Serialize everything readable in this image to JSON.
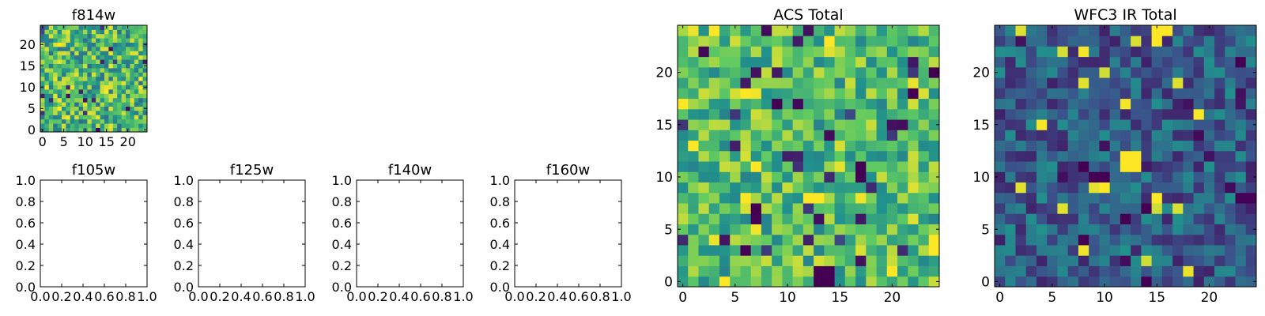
{
  "colormap": [
    "#440154",
    "#3b528b",
    "#21918c",
    "#5ec962",
    "#fde725"
  ],
  "chart_data": [
    {
      "id": "f814w",
      "type": "heatmap",
      "title": "f814w",
      "grid_size": [
        25,
        25
      ],
      "xticks": [
        "0",
        "5",
        "10",
        "15",
        "20"
      ],
      "yticks": [
        "0",
        "5",
        "10",
        "15",
        "20"
      ],
      "xlim": [
        -0.5,
        24.5
      ],
      "ylim": [
        -0.5,
        24.5
      ],
      "value_range": [
        0,
        1
      ],
      "hotspots": [
        {
          "x": 13,
          "y": 0,
          "v": 0.0
        }
      ],
      "seed": 11,
      "mean": 0.66,
      "spread": 0.3
    },
    {
      "id": "f105w",
      "type": "empty",
      "title": "f105w",
      "xticks": [
        "0.0",
        "0.2",
        "0.4",
        "0.6",
        "0.8",
        "1.0"
      ],
      "yticks": [
        "0.0",
        "0.2",
        "0.4",
        "0.6",
        "0.8",
        "1.0"
      ],
      "xlim": [
        0,
        1
      ],
      "ylim": [
        0,
        1
      ]
    },
    {
      "id": "f125w",
      "type": "empty",
      "title": "f125w",
      "xticks": [
        "0.0",
        "0.2",
        "0.4",
        "0.6",
        "0.8",
        "1.0"
      ],
      "yticks": [
        "0.0",
        "0.2",
        "0.4",
        "0.6",
        "0.8",
        "1.0"
      ],
      "xlim": [
        0,
        1
      ],
      "ylim": [
        0,
        1
      ]
    },
    {
      "id": "f140w",
      "type": "empty",
      "title": "f140w",
      "xticks": [
        "0.0",
        "0.2",
        "0.4",
        "0.6",
        "0.8",
        "1.0"
      ],
      "yticks": [
        "0.0",
        "0.2",
        "0.4",
        "0.6",
        "0.8",
        "1.0"
      ],
      "xlim": [
        0,
        1
      ],
      "ylim": [
        0,
        1
      ]
    },
    {
      "id": "f160w",
      "type": "empty",
      "title": "f160w",
      "xticks": [
        "0.0",
        "0.2",
        "0.4",
        "0.6",
        "0.8",
        "1.0"
      ],
      "yticks": [
        "0.0",
        "0.2",
        "0.4",
        "0.6",
        "0.8",
        "1.0"
      ],
      "xlim": [
        0,
        1
      ],
      "ylim": [
        0,
        1
      ]
    },
    {
      "id": "acs-total",
      "type": "heatmap",
      "title": "ACS Total",
      "grid_size": [
        25,
        25
      ],
      "xticks": [
        "0",
        "5",
        "10",
        "15",
        "20"
      ],
      "yticks": [
        "0",
        "5",
        "10",
        "15",
        "20"
      ],
      "xlim": [
        -0.5,
        24.5
      ],
      "ylim": [
        -0.5,
        24.5
      ],
      "value_range": [
        0,
        1
      ],
      "hotspots": [
        {
          "x": 13,
          "y": 0,
          "v": 0.0
        },
        {
          "x": 14,
          "y": 0,
          "v": 0.0
        },
        {
          "x": 13,
          "y": 1,
          "v": 0.0
        },
        {
          "x": 14,
          "y": 1,
          "v": 0.0
        },
        {
          "x": 17,
          "y": 10,
          "v": 0.0
        },
        {
          "x": 17,
          "y": 11,
          "v": 0.0
        },
        {
          "x": 7,
          "y": 6,
          "v": 0.0
        },
        {
          "x": 7,
          "y": 7,
          "v": 0.0
        },
        {
          "x": 6,
          "y": 3,
          "v": 0.0
        },
        {
          "x": 9,
          "y": 17,
          "v": 0.0
        },
        {
          "x": 22,
          "y": 18,
          "v": 0.0
        },
        {
          "x": 24,
          "y": 20,
          "v": 0.0
        },
        {
          "x": 11,
          "y": 12,
          "v": 0.1
        },
        {
          "x": 11,
          "y": 11,
          "v": 0.15
        },
        {
          "x": 12,
          "y": 8,
          "v": 1.0
        },
        {
          "x": 13,
          "y": 8,
          "v": 1.0
        },
        {
          "x": 6,
          "y": 8,
          "v": 1.0
        },
        {
          "x": 7,
          "y": 11,
          "v": 1.0
        },
        {
          "x": 1,
          "y": 13,
          "v": 1.0
        },
        {
          "x": 0,
          "y": 17,
          "v": 1.0
        },
        {
          "x": 3,
          "y": 24,
          "v": 1.0
        },
        {
          "x": 14,
          "y": 23,
          "v": 1.0
        },
        {
          "x": 6,
          "y": 18,
          "v": 1.0
        },
        {
          "x": 24,
          "y": 4,
          "v": 1.0
        },
        {
          "x": 24,
          "y": 3,
          "v": 1.0
        },
        {
          "x": 20,
          "y": 1,
          "v": 1.0
        }
      ],
      "seed": 7,
      "mean": 0.68,
      "spread": 0.24
    },
    {
      "id": "wfc3-ir-total",
      "type": "heatmap",
      "title": "WFC3 IR Total",
      "grid_size": [
        25,
        25
      ],
      "xticks": [
        "0",
        "5",
        "10",
        "15",
        "20"
      ],
      "yticks": [
        "0",
        "5",
        "10",
        "15",
        "20"
      ],
      "xlim": [
        -0.5,
        24.5
      ],
      "ylim": [
        -0.5,
        24.5
      ],
      "value_range": [
        0,
        1
      ],
      "hotspots": [
        {
          "x": 12,
          "y": 11,
          "v": 1.0
        },
        {
          "x": 13,
          "y": 11,
          "v": 1.0
        },
        {
          "x": 12,
          "y": 12,
          "v": 1.0
        },
        {
          "x": 13,
          "y": 12,
          "v": 1.0
        },
        {
          "x": 15,
          "y": 24,
          "v": 1.0
        },
        {
          "x": 16,
          "y": 24,
          "v": 1.0
        },
        {
          "x": 15,
          "y": 23,
          "v": 1.0
        },
        {
          "x": 2,
          "y": 24,
          "v": 0.95
        },
        {
          "x": 9,
          "y": 10,
          "v": 0.0
        },
        {
          "x": 10,
          "y": 10,
          "v": 0.0
        },
        {
          "x": 8,
          "y": 11,
          "v": 0.0
        },
        {
          "x": 8,
          "y": 4,
          "v": 0.0
        },
        {
          "x": 12,
          "y": 6,
          "v": 0.0
        },
        {
          "x": 14,
          "y": 7,
          "v": 0.0
        },
        {
          "x": 14,
          "y": 0,
          "v": 0.0
        },
        {
          "x": 23,
          "y": 8,
          "v": 0.0
        },
        {
          "x": 24,
          "y": 8,
          "v": 0.0
        },
        {
          "x": 23,
          "y": 21,
          "v": 0.0
        },
        {
          "x": 18,
          "y": 17,
          "v": 0.05
        }
      ],
      "seed": 3,
      "mean": 0.3,
      "spread": 0.2
    }
  ]
}
